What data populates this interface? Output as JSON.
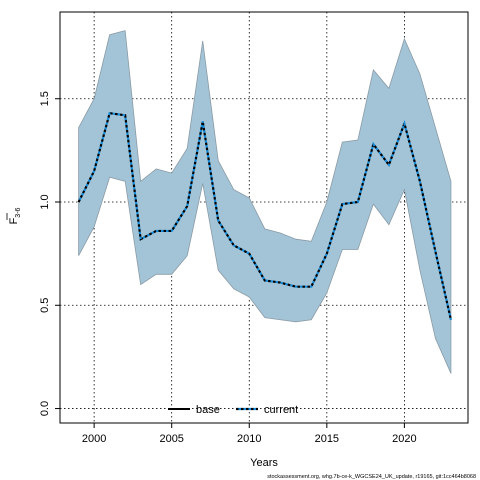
{
  "chart_data": {
    "type": "area",
    "xlabel": "Years",
    "ylabel": "F",
    "ylabel_subscript": "3-6",
    "xlim": [
      1997.8,
      2024.1
    ],
    "ylim": [
      -0.07,
      1.92
    ],
    "x_ticks": [
      2000,
      2005,
      2010,
      2015,
      2020
    ],
    "y_ticks": [
      0.0,
      0.5,
      1.0,
      1.5
    ],
    "y_tick_labels": [
      "0.0",
      "0.5",
      "1.0",
      "1.5"
    ],
    "grid": true,
    "legend_position": "bottom-center",
    "x": [
      1999,
      2000,
      2001,
      2002,
      2003,
      2004,
      2005,
      2006,
      2007,
      2008,
      2009,
      2010,
      2011,
      2012,
      2013,
      2014,
      2015,
      2016,
      2017,
      2018,
      2019,
      2020,
      2021,
      2022,
      2023
    ],
    "band": {
      "upper": [
        1.36,
        1.5,
        1.81,
        1.83,
        1.1,
        1.16,
        1.14,
        1.26,
        1.78,
        1.2,
        1.06,
        1.02,
        0.87,
        0.85,
        0.82,
        0.81,
        1.0,
        1.29,
        1.3,
        1.64,
        1.55,
        1.79,
        1.62,
        1.36,
        1.1
      ],
      "lower": [
        0.74,
        0.88,
        1.12,
        1.1,
        0.6,
        0.65,
        0.65,
        0.74,
        1.09,
        0.67,
        0.58,
        0.54,
        0.44,
        0.43,
        0.42,
        0.43,
        0.56,
        0.77,
        0.77,
        0.99,
        0.89,
        1.06,
        0.67,
        0.34,
        0.17
      ]
    },
    "series": [
      {
        "name": "base",
        "style": "solid",
        "color": "#000000",
        "values": [
          1.0,
          1.15,
          1.43,
          1.42,
          0.82,
          0.86,
          0.86,
          0.98,
          1.39,
          0.91,
          0.79,
          0.75,
          0.62,
          0.61,
          0.59,
          0.59,
          0.75,
          0.99,
          1.0,
          1.28,
          1.18,
          1.38,
          1.1,
          0.76,
          0.43
        ]
      },
      {
        "name": "current",
        "style": "dotted",
        "color": "#1a8bd6",
        "values": [
          1.0,
          1.15,
          1.43,
          1.42,
          0.82,
          0.86,
          0.86,
          0.98,
          1.39,
          0.91,
          0.79,
          0.75,
          0.62,
          0.61,
          0.59,
          0.59,
          0.75,
          0.99,
          1.0,
          1.28,
          1.18,
          1.38,
          1.1,
          0.76,
          0.43
        ]
      }
    ],
    "colors": {
      "band_fill": "#a3c4d6",
      "band_stroke": "#8a9ba6",
      "grid": "#000000"
    },
    "footer_note": "stockassessment.org, whg.7b-ce-k_WGCSE24_UK_update, r19165, git:1cc464b8068"
  }
}
